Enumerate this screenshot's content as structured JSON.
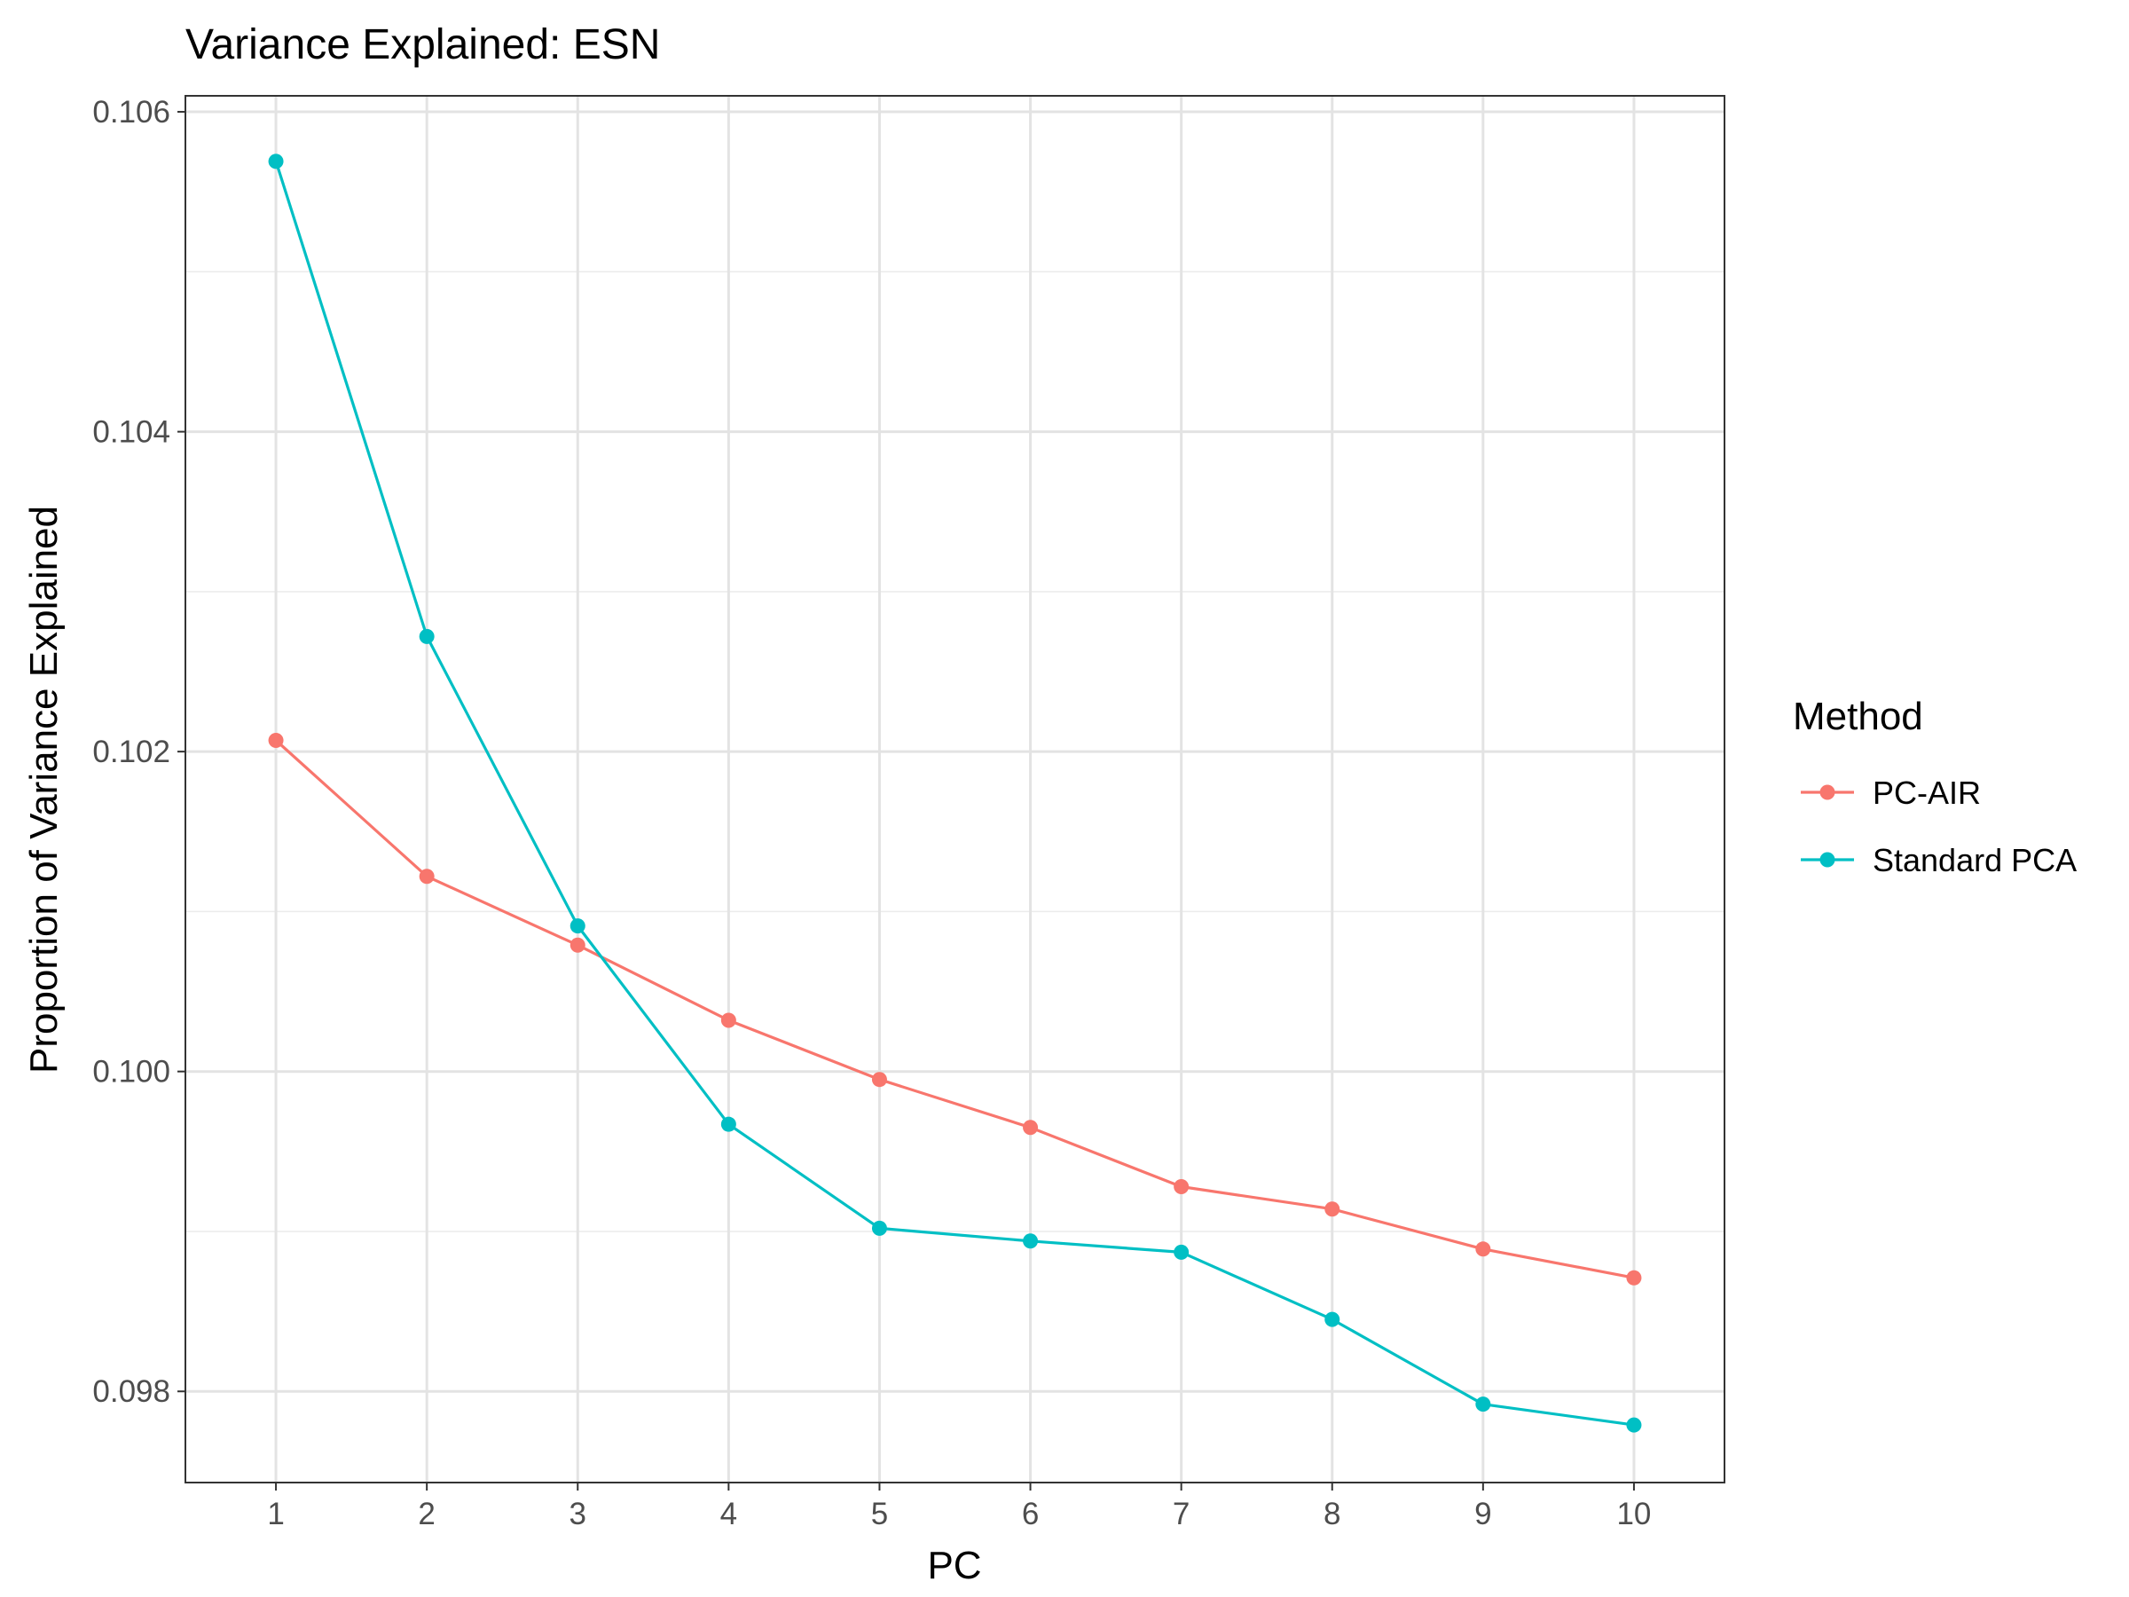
{
  "chart_data": {
    "type": "line",
    "title": "Variance Explained: ESN",
    "xlabel": "PC",
    "ylabel": "Proportion of Variance Explained",
    "x": [
      1,
      2,
      3,
      4,
      5,
      6,
      7,
      8,
      9,
      10
    ],
    "xlim": [
      0.4,
      10.6
    ],
    "ylim": [
      0.09743,
      0.1061
    ],
    "y_ticks": [
      0.098,
      0.1,
      0.102,
      0.104,
      0.106
    ],
    "y_tick_labels": [
      "0.098",
      "0.100",
      "0.102",
      "0.104",
      "0.106"
    ],
    "y_minor_ticks": [
      0.099,
      0.101,
      0.103,
      0.105
    ],
    "x_ticks": [
      1,
      2,
      3,
      4,
      5,
      6,
      7,
      8,
      9,
      10
    ],
    "x_tick_labels": [
      "1",
      "2",
      "3",
      "4",
      "5",
      "6",
      "7",
      "8",
      "9",
      "10"
    ],
    "grid": true,
    "legend": {
      "title": "Method",
      "position": "right"
    },
    "series": [
      {
        "name": "PC-AIR",
        "color": "#F8766D",
        "values": [
          0.10207,
          0.10122,
          0.10079,
          0.10032,
          0.09995,
          0.09965,
          0.09928,
          0.09914,
          0.09889,
          0.09871
        ]
      },
      {
        "name": "Standard PCA",
        "color": "#00BFC4",
        "values": [
          0.10569,
          0.10272,
          0.10091,
          0.09967,
          0.09902,
          0.09894,
          0.09887,
          0.09845,
          0.09792,
          0.09779
        ]
      }
    ]
  }
}
